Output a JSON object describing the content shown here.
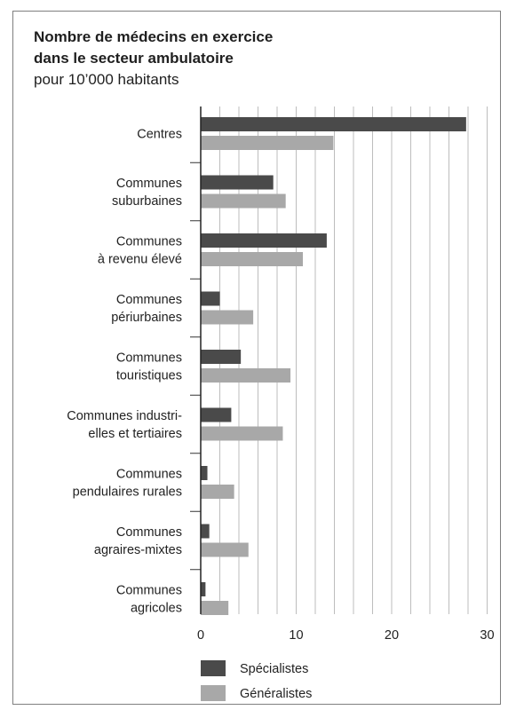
{
  "chart_data": {
    "type": "bar",
    "orientation": "horizontal",
    "title_lines": [
      "Nombre de médecins en exercice",
      "dans le secteur ambulatoire"
    ],
    "subtitle": "pour 10’000 habitants",
    "categories": [
      [
        "Centres"
      ],
      [
        "Communes",
        "suburbaines"
      ],
      [
        "Communes",
        "à revenu élevé"
      ],
      [
        "Communes",
        "périurbaines"
      ],
      [
        "Communes",
        "touristiques"
      ],
      [
        "Communes industri-",
        "elles et tertiaires"
      ],
      [
        "Communes",
        "pendulaires rurales"
      ],
      [
        "Communes",
        "agraires-mixtes"
      ],
      [
        "Communes",
        "agricoles"
      ]
    ],
    "series": [
      {
        "name": "Spécialistes",
        "color": "#4a4a4a",
        "values": [
          27.8,
          7.6,
          13.2,
          2.0,
          4.2,
          3.2,
          0.7,
          0.9,
          0.5
        ]
      },
      {
        "name": "Généralistes",
        "color": "#a8a8a8",
        "values": [
          13.9,
          8.9,
          10.7,
          5.5,
          9.4,
          8.6,
          3.5,
          5.0,
          2.9
        ]
      }
    ],
    "xticks": [
      0,
      10,
      20,
      30
    ],
    "xlim": [
      0,
      30
    ],
    "grid": true,
    "legend_position": "bottom-left"
  }
}
